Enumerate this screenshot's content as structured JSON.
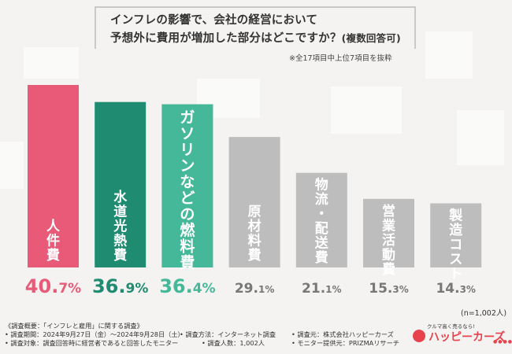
{
  "question": {
    "line1": "インフレの影響で、会社の経営において",
    "line2": "予想外に費用が増加した部分はどこですか？",
    "line2_note": "(複数回答可)",
    "sub_note": "※全17項目中上位7項目を抜粋"
  },
  "chart_data": {
    "type": "bar",
    "title": "インフレの影響で、会社の経営において予想外に費用が増加した部分はどこですか？(複数回答可)",
    "categories": [
      "人件費",
      "水道光熱費",
      "ガソリンなどの燃料費",
      "原材料費",
      "物流・配送費",
      "営業活動費",
      "製造コスト"
    ],
    "values": [
      40.7,
      36.9,
      36.4,
      29.1,
      21.1,
      15.3,
      14.3
    ],
    "value_labels": [
      {
        "int": "40.",
        "dec": "7",
        "unit": "%"
      },
      {
        "int": "36.",
        "dec": "9",
        "unit": "%"
      },
      {
        "int": "36.",
        "dec": "4",
        "unit": "%"
      },
      {
        "int": "29.",
        "dec": "1",
        "unit": "%"
      },
      {
        "int": "21.",
        "dec": "1",
        "unit": "%"
      },
      {
        "int": "15.",
        "dec": "3",
        "unit": "%"
      },
      {
        "int": "14.",
        "dec": "3",
        "unit": "%"
      }
    ],
    "colors": [
      "#e85a78",
      "#1f8c72",
      "#45b89a",
      "#bdbdbd",
      "#bdbdbd",
      "#bdbdbd",
      "#bdbdbd"
    ],
    "value_colors": [
      "#e85a78",
      "#1f8c72",
      "#45b89a",
      "#777777",
      "#777777",
      "#777777",
      "#777777"
    ],
    "xlabel": "",
    "ylabel": "",
    "ylim": [
      0,
      40.7
    ],
    "grid": false,
    "n_label": "(n=1,002人)"
  },
  "footer": {
    "overview": "《調査概要：「インフレと雇用」に関する調査》",
    "period": "• 調査期間：2024年9月27日（金）～2024年9月28日（土）",
    "method": "• 調査方法：インターネット調査",
    "source": "• 調査元：株式会社ハッピーカーズ",
    "target": "• 調査対象：調査回答時に経営者であると回答したモニター",
    "count": "• 調査人数：1,002人",
    "provider": "• モニター提供元：PRIZMAリサーチ"
  },
  "logo": {
    "tagline": "クルマ高く売るなら!",
    "name": "ハッピーカーズ",
    "dots": "●●●●"
  }
}
